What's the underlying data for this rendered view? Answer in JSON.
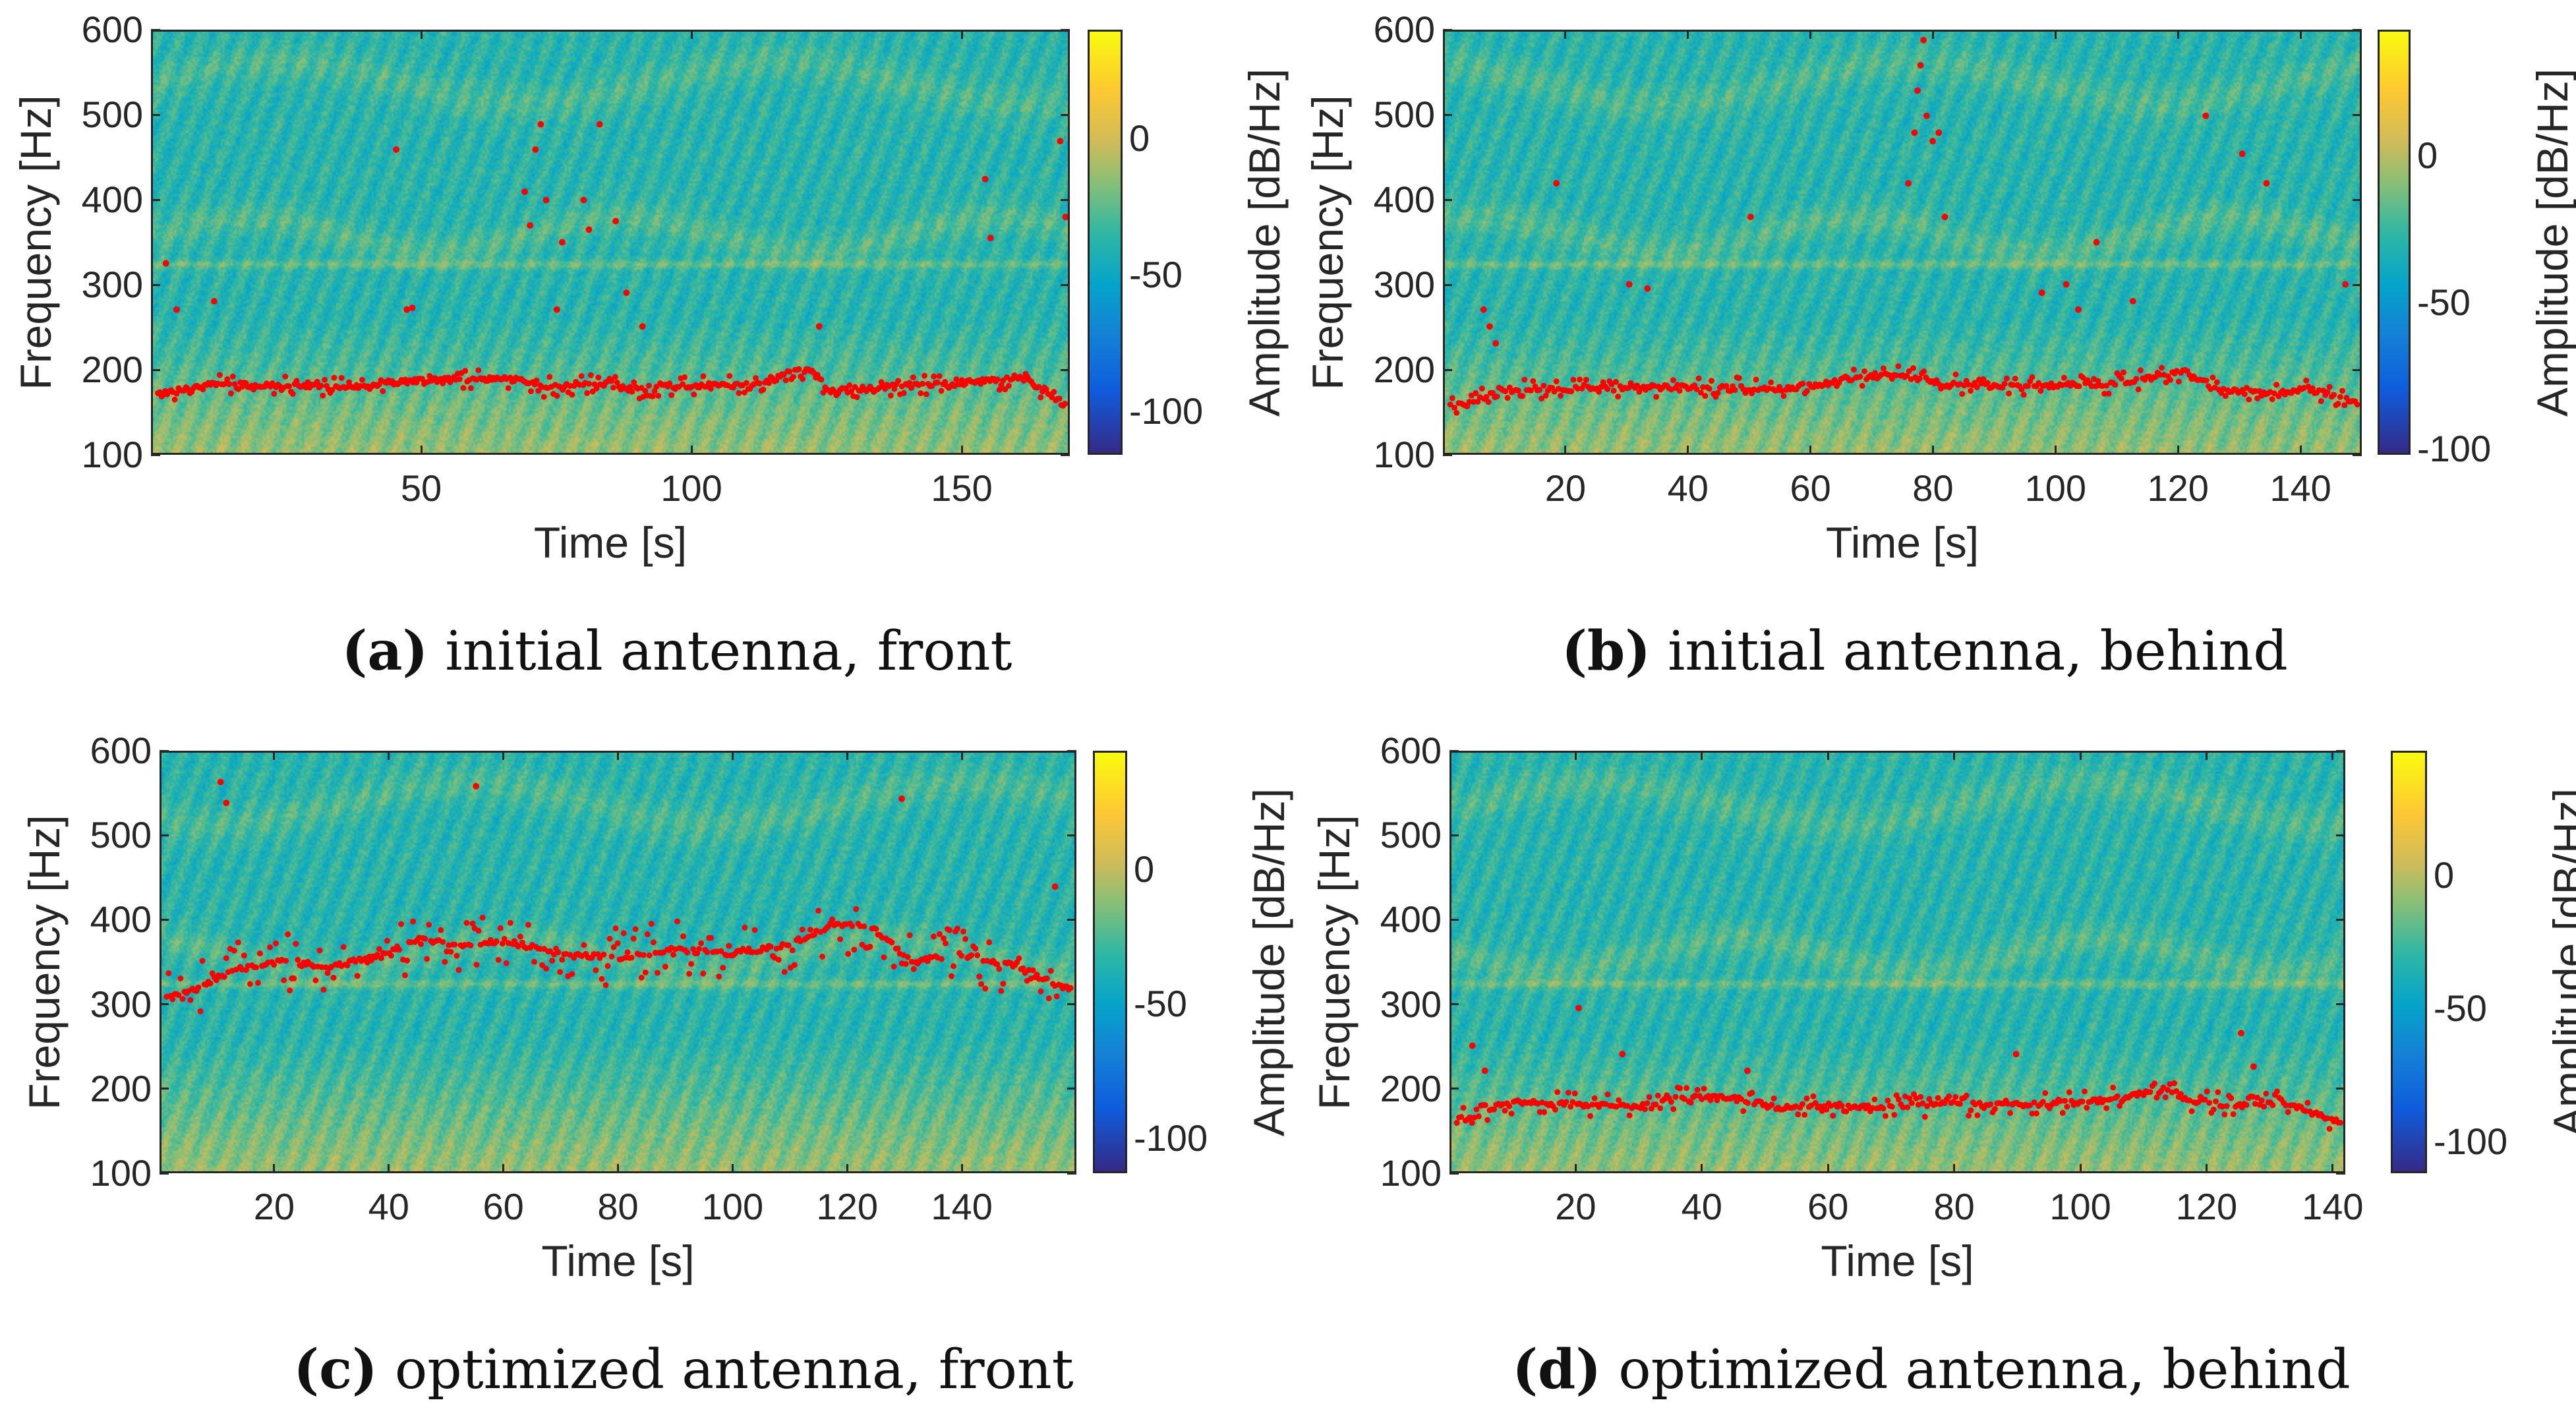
{
  "chart_data": [
    {
      "type": "heatmap",
      "subtype": "spectrogram-with-pitch-scatter",
      "caption_tag": "(a)",
      "caption_text": " initial antenna, front",
      "xlabel": "Time [s]",
      "ylabel": "Frequency [Hz]",
      "colorbar_label": "Amplitude [dB/Hz]",
      "xlim": [
        0,
        170
      ],
      "ylim": [
        100,
        600
      ],
      "clim": [
        -116,
        40
      ],
      "xticks": [
        "50",
        "100",
        "150"
      ],
      "xtick_values": [
        50,
        100,
        150
      ],
      "yticks": [
        "100",
        "200",
        "300",
        "400",
        "500",
        "600"
      ],
      "ytick_values": [
        100,
        200,
        300,
        400,
        500,
        600
      ],
      "cticks": [
        "0",
        "-50",
        "-100"
      ],
      "ctick_values": [
        0,
        -50,
        -100
      ],
      "track": {
        "x": [
          1,
          5,
          10,
          20,
          30,
          40,
          43,
          50,
          60,
          68,
          72,
          80,
          90,
          100,
          110,
          115,
          120,
          123,
          126,
          135,
          145,
          155,
          162,
          166,
          170
        ],
        "y": [
          170,
          175,
          182,
          180,
          180,
          178,
          183,
          186,
          187,
          187,
          178,
          182,
          176,
          180,
          180,
          186,
          200,
          195,
          172,
          178,
          180,
          185,
          188,
          175,
          155
        ]
      },
      "outliers": {
        "x": [
          2,
          4,
          11,
          45,
          47,
          48,
          69,
          70,
          71,
          72,
          73,
          75,
          76,
          80,
          81,
          83,
          86,
          88,
          91,
          124,
          155,
          156,
          169,
          170
        ],
        "y": [
          325,
          270,
          280,
          460,
          270,
          272,
          410,
          370,
          460,
          490,
          400,
          270,
          350,
          400,
          365,
          490,
          375,
          290,
          250,
          250,
          425,
          355,
          470,
          380
        ]
      },
      "scatter_spread_hz": 12
    },
    {
      "type": "heatmap",
      "subtype": "spectrogram-with-pitch-scatter",
      "caption_tag": "(b)",
      "caption_text": " initial antenna, behind",
      "xlabel": "Time [s]",
      "ylabel": "Frequency [Hz]",
      "colorbar_label": "Amplitude [dB/Hz]",
      "xlim": [
        0,
        150
      ],
      "ylim": [
        100,
        600
      ],
      "clim": [
        -102,
        43
      ],
      "xticks": [
        "20",
        "40",
        "60",
        "80",
        "100",
        "120",
        "140"
      ],
      "xtick_values": [
        20,
        40,
        60,
        80,
        100,
        120,
        140
      ],
      "yticks": [
        "100",
        "200",
        "300",
        "400",
        "500",
        "600"
      ],
      "ytick_values": [
        100,
        200,
        300,
        400,
        500,
        600
      ],
      "cticks": [
        "0",
        "-50",
        "-100"
      ],
      "ctick_values": [
        0,
        -50,
        -100
      ],
      "track": {
        "x": [
          0,
          4,
          8,
          15,
          25,
          35,
          45,
          55,
          62,
          68,
          75,
          82,
          90,
          100,
          110,
          118,
          122,
          127,
          135,
          142,
          148,
          150
        ],
        "y": [
          155,
          158,
          175,
          176,
          176,
          178,
          178,
          176,
          182,
          190,
          192,
          182,
          180,
          180,
          182,
          192,
          196,
          175,
          170,
          175,
          165,
          160
        ]
      },
      "outliers": {
        "x": [
          6,
          7,
          8,
          18,
          30,
          33,
          50,
          76,
          77,
          77.5,
          78,
          78.5,
          79,
          80,
          81,
          82,
          98,
          102,
          104,
          107,
          113,
          125,
          131,
          135,
          148
        ],
        "y": [
          270,
          250,
          230,
          420,
          300,
          295,
          380,
          420,
          480,
          530,
          560,
          590,
          500,
          470,
          480,
          380,
          290,
          300,
          270,
          350,
          280,
          500,
          455,
          420,
          300
        ]
      },
      "scatter_spread_hz": 12
    },
    {
      "type": "heatmap",
      "subtype": "spectrogram-with-pitch-scatter",
      "caption_tag": "(c)",
      "caption_text": " optimized antenna, front",
      "xlabel": "Time [s]",
      "ylabel": "Frequency [Hz]",
      "colorbar_label": "Amplitude [dB/Hz]",
      "xlim": [
        0,
        160
      ],
      "ylim": [
        100,
        600
      ],
      "clim": [
        -113,
        44
      ],
      "xticks": [
        "20",
        "40",
        "60",
        "80",
        "100",
        "120",
        "140"
      ],
      "xtick_values": [
        20,
        40,
        60,
        80,
        100,
        120,
        140
      ],
      "yticks": [
        "100",
        "200",
        "300",
        "400",
        "500",
        "600"
      ],
      "ytick_values": [
        100,
        200,
        300,
        400,
        500,
        600
      ],
      "cticks": [
        "0",
        "-50",
        "-100"
      ],
      "ctick_values": [
        0,
        -50,
        -100
      ],
      "track": {
        "x": [
          0,
          5,
          12,
          20,
          30,
          40,
          45,
          52,
          60,
          70,
          80,
          90,
          100,
          110,
          118,
          125,
          132,
          140,
          150,
          158
        ],
        "y": [
          305,
          315,
          340,
          350,
          345,
          360,
          378,
          370,
          375,
          360,
          355,
          365,
          360,
          370,
          395,
          390,
          350,
          360,
          345,
          320
        ]
      },
      "outliers": {
        "x": [
          10,
          11,
          55,
          130,
          157
        ],
        "y": [
          565,
          540,
          560,
          545,
          440
        ]
      },
      "scatter_spread_hz": 35
    },
    {
      "type": "heatmap",
      "subtype": "spectrogram-with-pitch-scatter",
      "caption_tag": "(d)",
      "caption_text": " optimized antenna, behind",
      "xlabel": "Time [s]",
      "ylabel": "Frequency [Hz]",
      "colorbar_label": "Amplitude [dB/Hz]",
      "xlim": [
        0,
        142
      ],
      "ylim": [
        100,
        600
      ],
      "clim": [
        -112,
        47
      ],
      "xticks": [
        "20",
        "40",
        "60",
        "80",
        "100",
        "120",
        "140"
      ],
      "xtick_values": [
        20,
        40,
        60,
        80,
        100,
        120,
        140
      ],
      "yticks": [
        "100",
        "200",
        "300",
        "400",
        "500",
        "600"
      ],
      "ytick_values": [
        100,
        200,
        300,
        400,
        500,
        600
      ],
      "cticks": [
        "0",
        "-50",
        "-100"
      ],
      "ctick_values": [
        0,
        -50,
        -100
      ],
      "track": {
        "x": [
          0,
          3,
          8,
          20,
          30,
          35,
          40,
          46,
          52,
          60,
          68,
          78,
          85,
          95,
          103,
          110,
          114,
          118,
          125,
          132,
          137,
          142
        ],
        "y": [
          160,
          165,
          182,
          180,
          178,
          186,
          188,
          186,
          175,
          180,
          176,
          180,
          180,
          180,
          184,
          192,
          198,
          185,
          178,
          185,
          170,
          160
        ]
      },
      "outliers": {
        "x": [
          3,
          5,
          20,
          27,
          47,
          90,
          126,
          128
        ],
        "y": [
          250,
          220,
          295,
          240,
          220,
          240,
          265,
          225
        ]
      },
      "scatter_spread_hz": 14
    }
  ],
  "colors": {
    "track": "#ff0000",
    "axis": "#262626"
  }
}
